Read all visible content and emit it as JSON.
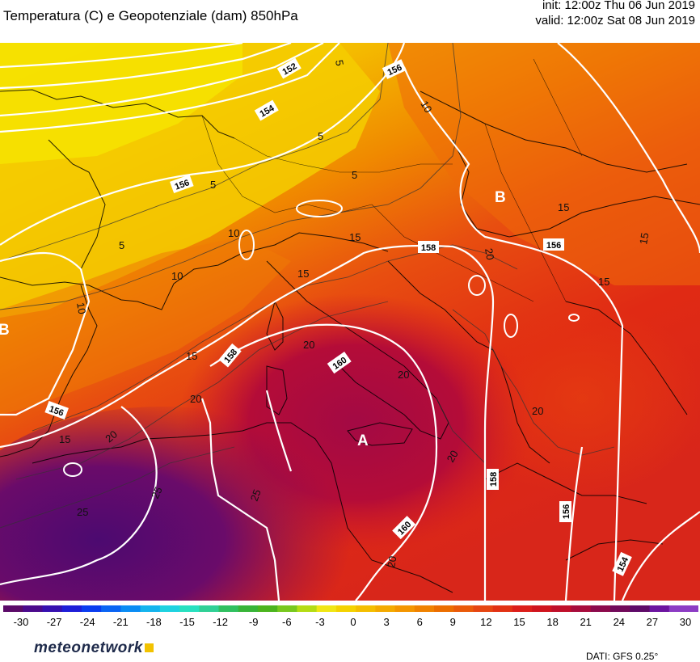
{
  "header": {
    "title": "Temperatura (C) e Geopotenziale (dam) 850hPa",
    "init": "init: 12:00z Thu 06 Jun 2019",
    "valid": "valid: 12:00z Sat 08 Jun 2019"
  },
  "map": {
    "pressure_centers": [
      {
        "label": "B"
      },
      {
        "label": "A"
      },
      {
        "label": "B"
      }
    ],
    "geopotential_labels": [
      "152",
      "154",
      "156",
      "156",
      "156",
      "156",
      "158",
      "158",
      "158",
      "160",
      "160",
      "156",
      "154"
    ],
    "temperature_labels": [
      "5",
      "5",
      "5",
      "5",
      "5",
      "10",
      "10",
      "10",
      "10",
      "15",
      "15",
      "15",
      "15",
      "15",
      "15",
      "15",
      "20",
      "20",
      "20",
      "20",
      "20",
      "20",
      "20",
      "25",
      "25",
      "25",
      "20"
    ],
    "fill_colors": [
      "#f6e800",
      "#f4b800",
      "#f18800",
      "#ec5a10",
      "#e63014",
      "#c8102e",
      "#9a0a50",
      "#6a0b74"
    ],
    "contour_color": "#ffffff",
    "isotherm_color": "#333333",
    "coastline_color": "#000000"
  },
  "colorbar": {
    "ticks": [
      "-30",
      "-27",
      "-24",
      "-21",
      "-18",
      "-15",
      "-12",
      "-9",
      "-6",
      "-3",
      "0",
      "3",
      "6",
      "9",
      "12",
      "15",
      "18",
      "21",
      "24",
      "27",
      "30"
    ],
    "colors": [
      "#5b0a68",
      "#4b0a8c",
      "#3610b0",
      "#1e1ed8",
      "#0a3cf0",
      "#0a64f4",
      "#0a8cf4",
      "#14b4ee",
      "#1ed2e0",
      "#28e0c0",
      "#30d096",
      "#30c060",
      "#38b438",
      "#4cb41e",
      "#78c81e",
      "#b4dc14",
      "#f0e614",
      "#f4d200",
      "#f4be00",
      "#f4aa00",
      "#f49600",
      "#f08200",
      "#ec6e00",
      "#ea5a0a",
      "#e64612",
      "#e23214",
      "#dc1e1a",
      "#d0141e",
      "#c00f2a",
      "#a80c3c",
      "#8c0a4c",
      "#720a5a",
      "#5e0a68",
      "#6c14a0",
      "#8c3cc4"
    ],
    "right_swatch_color": "#8c3cc4"
  },
  "footer": {
    "logo_text": "meteonetwork",
    "logo_square_color": "#f2c200",
    "source": "DATI: GFS 0.25°"
  }
}
